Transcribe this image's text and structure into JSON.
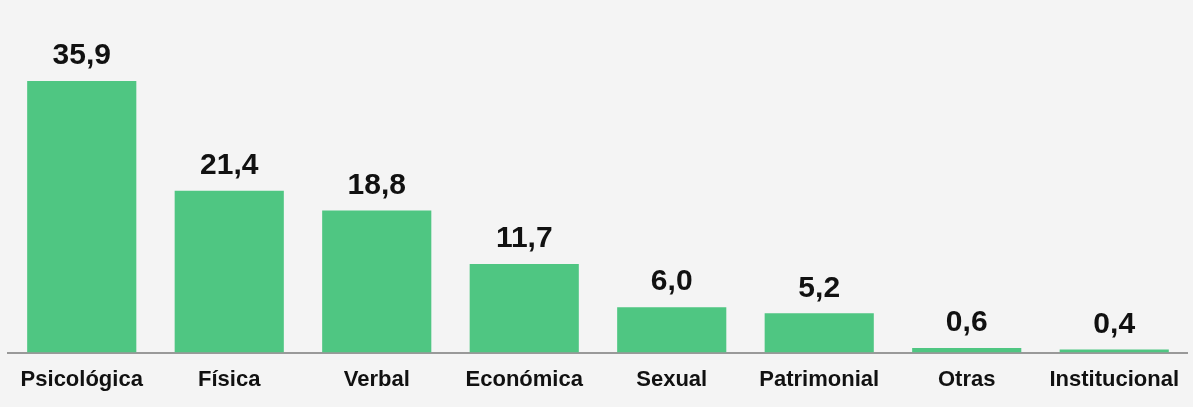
{
  "chart_data": {
    "type": "bar",
    "relative": false,
    "categories": [
      "Psicológica",
      "Física",
      "Verbal",
      "Económica",
      "Sexual",
      "Patrimonial",
      "Otras",
      "Institucional"
    ],
    "values": [
      35.9,
      21.4,
      18.8,
      11.7,
      6.0,
      5.2,
      0.6,
      0.4
    ],
    "value_labels": [
      "35,9",
      "21,4",
      "18,8",
      "11,7",
      "6,0",
      "5,2",
      "0,6",
      "0,4"
    ],
    "color": "#4fc682",
    "grid": false,
    "legend": false
  }
}
